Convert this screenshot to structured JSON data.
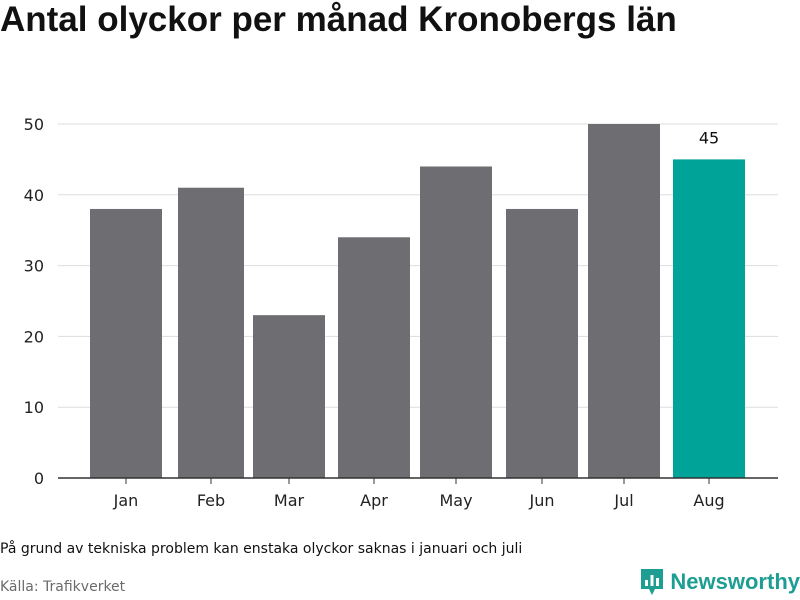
{
  "title": "Antal olyckor per månad Kronobergs län",
  "footnote": "På grund av tekniska problem kan enstaka olyckor saknas i januari och juli",
  "source": "Källa: Trafikverket",
  "brand": {
    "name": "Newsworthy",
    "icon": "bar-chart-logo-icon",
    "color": "#1e9e92"
  },
  "chart_data": {
    "type": "bar",
    "categories": [
      "Jan",
      "Feb",
      "Mar",
      "Apr",
      "May",
      "Jun",
      "Jul",
      "Aug"
    ],
    "values": [
      38,
      41,
      23,
      34,
      44,
      38,
      50,
      45
    ],
    "ylim": [
      0,
      50
    ],
    "yticks": [
      0,
      10,
      20,
      30,
      40,
      50
    ],
    "grid": true,
    "colors": {
      "bar": "#6e6d72",
      "highlight": "#00a398",
      "grid": "#dddddd",
      "axis": "#333333"
    },
    "highlight_index": 7,
    "data_labels": [
      {
        "index": 7,
        "text": "45"
      }
    ]
  }
}
